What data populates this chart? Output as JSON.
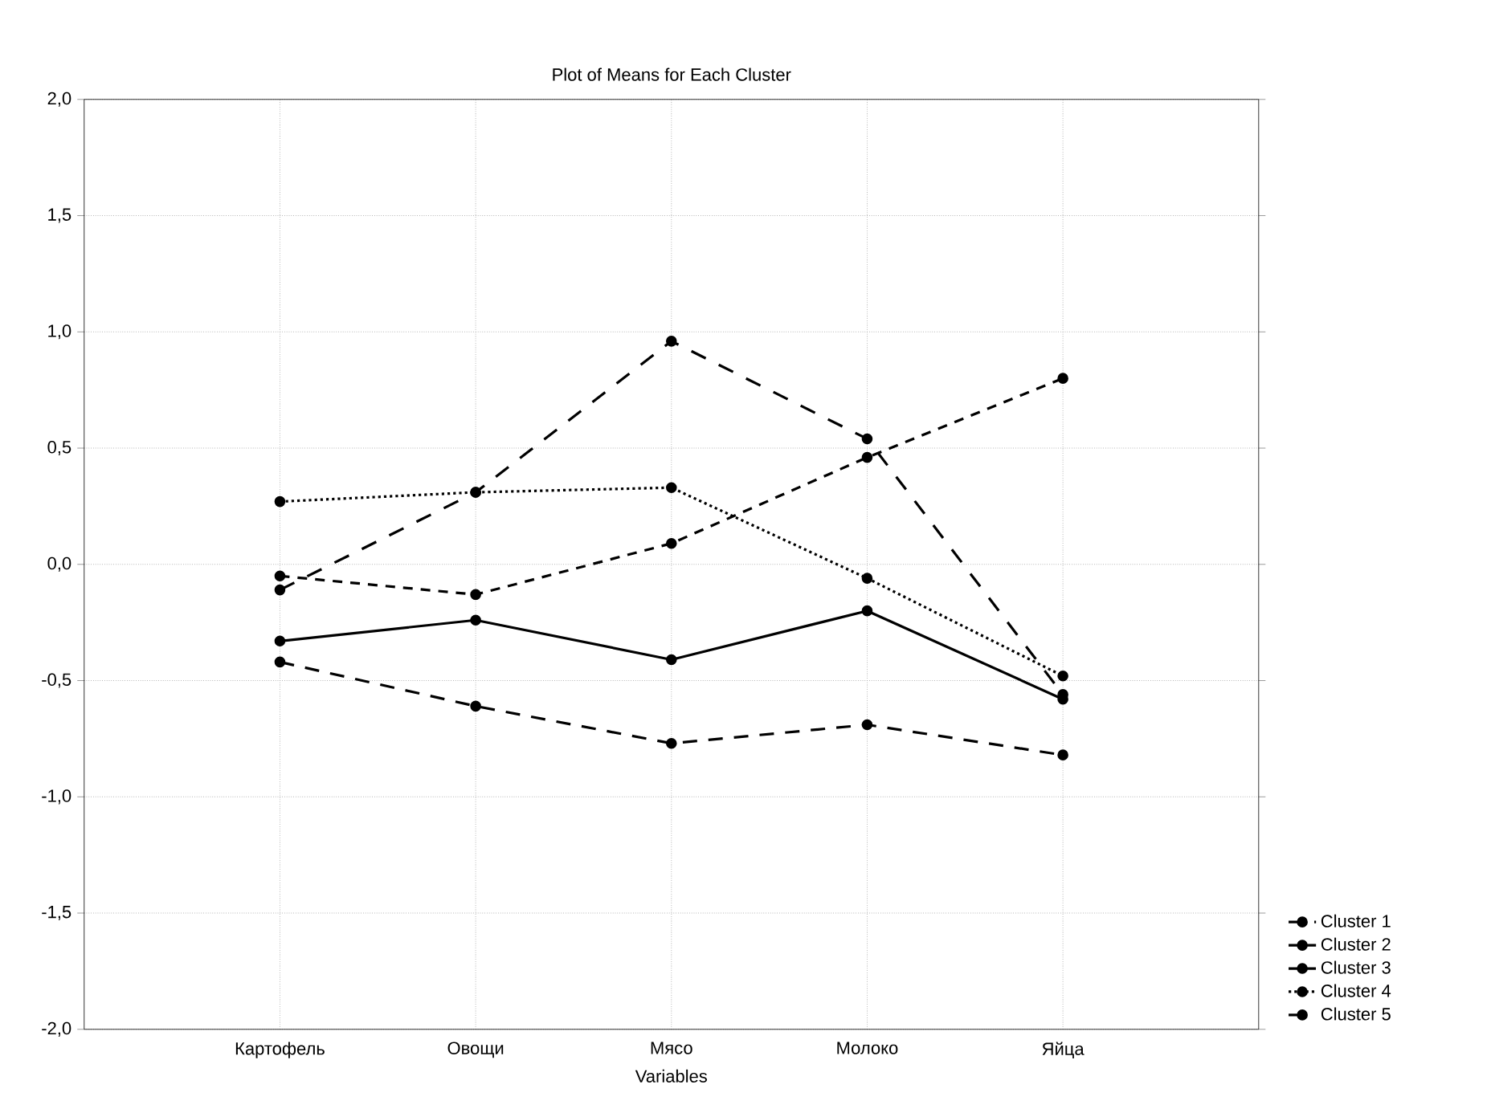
{
  "chart_data": {
    "type": "line",
    "title": "Plot of Means for Each Cluster",
    "xlabel": "Variables",
    "categories": [
      "Картофель",
      "Овощи",
      "Мясо",
      "Молоко",
      "Яйца"
    ],
    "series": [
      {
        "name": "Cluster 1",
        "color": "#000000",
        "line_style": "dashed",
        "values": [
          -0.42,
          -0.61,
          -0.77,
          -0.69,
          -0.82
        ]
      },
      {
        "name": "Cluster 2",
        "color": "#000000",
        "line_style": "solid",
        "values": [
          -0.33,
          -0.24,
          -0.41,
          -0.2,
          -0.58
        ]
      },
      {
        "name": "Cluster 3",
        "color": "#000000",
        "line_style": "dashed",
        "values": [
          -0.05,
          -0.13,
          0.09,
          0.46,
          0.8
        ]
      },
      {
        "name": "Cluster 4",
        "color": "#000000",
        "line_style": "dotted",
        "values": [
          0.27,
          0.31,
          0.33,
          -0.06,
          -0.48
        ]
      },
      {
        "name": "Cluster 5",
        "color": "#000000",
        "line_style": "dashed",
        "values": [
          -0.11,
          0.31,
          0.96,
          0.54,
          -0.56
        ]
      }
    ],
    "ylim": [
      -2,
      2
    ],
    "yticks": [
      {
        "value": -2,
        "label": "-2,0"
      },
      {
        "value": -1.5,
        "label": "-1,5"
      },
      {
        "value": -1,
        "label": "-1,0"
      },
      {
        "value": -0.5,
        "label": "-0,5"
      },
      {
        "value": 0,
        "label": "0,0"
      },
      {
        "value": 0.5,
        "label": "0,5"
      },
      {
        "value": 1,
        "label": "1,0"
      },
      {
        "value": 1.5,
        "label": "1,5"
      },
      {
        "value": 2,
        "label": "2,0"
      }
    ],
    "grid": true,
    "legend": "bottom right",
    "marker": "circle"
  }
}
